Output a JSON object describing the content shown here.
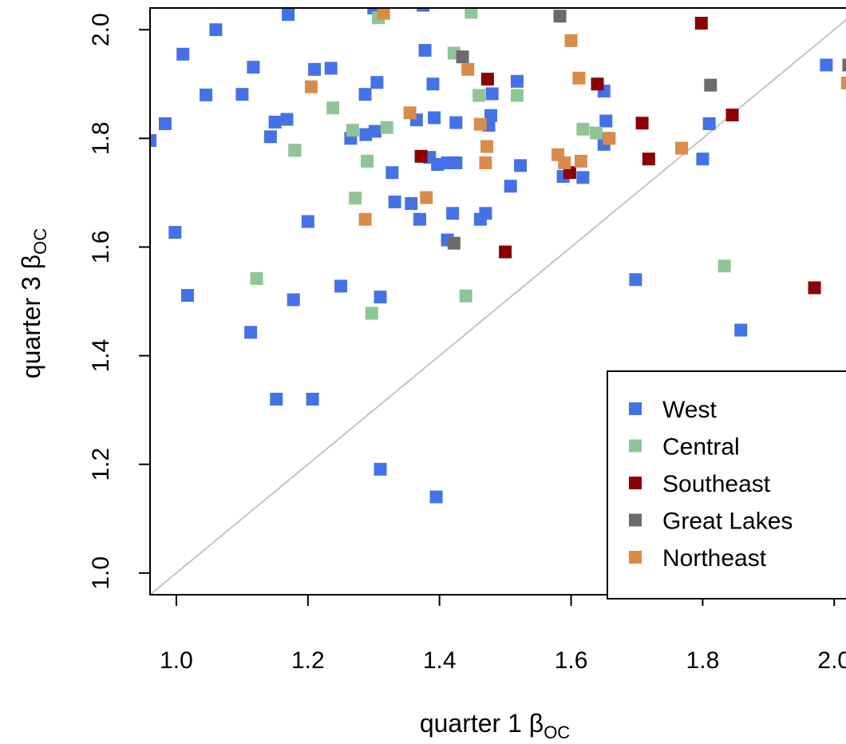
{
  "chart_data": {
    "type": "scatter",
    "xlabel_main": "quarter 1 β",
    "xlabel_sub": "OC",
    "ylabel_main": "quarter 3 β",
    "ylabel_sub": "OC",
    "xlim": [
      0.96,
      2.03
    ],
    "ylim": [
      0.96,
      2.04
    ],
    "x_ticks": [
      1.0,
      1.2,
      1.4,
      1.6,
      1.8,
      2.0
    ],
    "x_tick_labels": [
      "1.0",
      "1.2",
      "1.4",
      "1.6",
      "1.8",
      "2.0"
    ],
    "y_ticks": [
      1.0,
      1.2,
      1.4,
      1.6,
      1.8,
      2.0
    ],
    "y_tick_labels": [
      "1.0",
      "1.2",
      "1.4",
      "1.6",
      "1.8",
      "2.0"
    ],
    "reference_line": "y = x",
    "grid": false,
    "legend_position": "bottom-right",
    "series": [
      {
        "name": "West",
        "color": "#4472e6",
        "points": [
          [
            0.96,
            1.796
          ],
          [
            0.983,
            1.827
          ],
          [
            1.01,
            1.955
          ],
          [
            1.06,
            2.0
          ],
          [
            1.045,
            1.88
          ],
          [
            1.1,
            1.881
          ],
          [
            1.117,
            1.931
          ],
          [
            1.15,
            1.83
          ],
          [
            1.168,
            1.835
          ],
          [
            1.143,
            1.803
          ],
          [
            1.18,
            1.778
          ],
          [
            1.17,
            2.028
          ],
          [
            1.21,
            1.927
          ],
          [
            1.235,
            1.929
          ],
          [
            1.2,
            1.647
          ],
          [
            0.998,
            1.627
          ],
          [
            1.017,
            1.511
          ],
          [
            1.113,
            1.443
          ],
          [
            1.178,
            1.503
          ],
          [
            1.25,
            1.528
          ],
          [
            1.152,
            1.32
          ],
          [
            1.207,
            1.32
          ],
          [
            1.265,
            1.8
          ],
          [
            1.288,
            1.807
          ],
          [
            1.302,
            1.813
          ],
          [
            1.287,
            1.881
          ],
          [
            1.305,
            1.903
          ],
          [
            1.328,
            1.737
          ],
          [
            1.332,
            1.683
          ],
          [
            1.357,
            1.68
          ],
          [
            1.365,
            1.834
          ],
          [
            1.37,
            1.651
          ],
          [
            1.378,
            1.962
          ],
          [
            1.39,
            1.9
          ],
          [
            1.392,
            1.838
          ],
          [
            1.385,
            1.765
          ],
          [
            1.397,
            1.752
          ],
          [
            1.412,
            1.755
          ],
          [
            1.425,
            1.755
          ],
          [
            1.425,
            1.829
          ],
          [
            1.42,
            1.662
          ],
          [
            1.412,
            1.613
          ],
          [
            1.31,
            1.508
          ],
          [
            1.31,
            1.191
          ],
          [
            1.395,
            1.14
          ],
          [
            1.462,
            1.651
          ],
          [
            1.47,
            1.662
          ],
          [
            1.475,
            1.824
          ],
          [
            1.478,
            1.842
          ],
          [
            1.48,
            1.882
          ],
          [
            1.518,
            1.905
          ],
          [
            1.508,
            1.712
          ],
          [
            1.523,
            1.75
          ],
          [
            1.588,
            1.73
          ],
          [
            1.618,
            1.728
          ],
          [
            1.65,
            1.789
          ],
          [
            1.652,
            1.8
          ],
          [
            1.653,
            1.832
          ],
          [
            1.65,
            1.887
          ],
          [
            1.698,
            1.54
          ],
          [
            1.8,
            1.762
          ],
          [
            1.81,
            1.827
          ],
          [
            1.858,
            1.447
          ],
          [
            1.988,
            1.935
          ],
          [
            1.3,
            2.04
          ],
          [
            1.375,
            2.045
          ]
        ]
      },
      {
        "name": "Central",
        "color": "#8fc596",
        "points": [
          [
            1.18,
            1.778
          ],
          [
            1.122,
            1.542
          ],
          [
            1.238,
            1.856
          ],
          [
            1.268,
            1.815
          ],
          [
            1.272,
            1.69
          ],
          [
            1.29,
            1.758
          ],
          [
            1.32,
            1.82
          ],
          [
            1.297,
            1.478
          ],
          [
            1.307,
            2.022
          ],
          [
            1.422,
            1.957
          ],
          [
            1.448,
            2.032
          ],
          [
            1.46,
            1.879
          ],
          [
            1.518,
            1.879
          ],
          [
            1.44,
            1.51
          ],
          [
            1.618,
            1.817
          ],
          [
            1.638,
            1.81
          ],
          [
            1.833,
            1.565
          ]
        ]
      },
      {
        "name": "Southeast",
        "color": "#8b0000",
        "points": [
          [
            1.372,
            1.767
          ],
          [
            1.473,
            1.909
          ],
          [
            1.5,
            1.591
          ],
          [
            1.598,
            1.737
          ],
          [
            1.64,
            1.9
          ],
          [
            1.708,
            1.828
          ],
          [
            1.718,
            1.762
          ],
          [
            1.798,
            2.012
          ],
          [
            1.845,
            1.843
          ],
          [
            1.97,
            1.525
          ]
        ]
      },
      {
        "name": "Great Lakes",
        "color": "#6b6b6b",
        "points": [
          [
            1.435,
            1.95
          ],
          [
            1.422,
            1.607
          ],
          [
            1.583,
            2.025
          ],
          [
            1.812,
            1.898
          ],
          [
            2.022,
            1.935
          ]
        ]
      },
      {
        "name": "Northeast",
        "color": "#d98c4a",
        "points": [
          [
            1.205,
            1.895
          ],
          [
            1.287,
            1.651
          ],
          [
            1.315,
            2.03
          ],
          [
            1.355,
            1.847
          ],
          [
            1.38,
            1.691
          ],
          [
            1.443,
            1.927
          ],
          [
            1.462,
            1.826
          ],
          [
            1.472,
            1.785
          ],
          [
            1.47,
            1.755
          ],
          [
            1.58,
            1.77
          ],
          [
            1.59,
            1.755
          ],
          [
            1.6,
            1.98
          ],
          [
            1.612,
            1.911
          ],
          [
            1.615,
            1.758
          ],
          [
            1.658,
            1.8
          ],
          [
            1.768,
            1.782
          ],
          [
            2.02,
            1.902
          ]
        ]
      }
    ]
  }
}
